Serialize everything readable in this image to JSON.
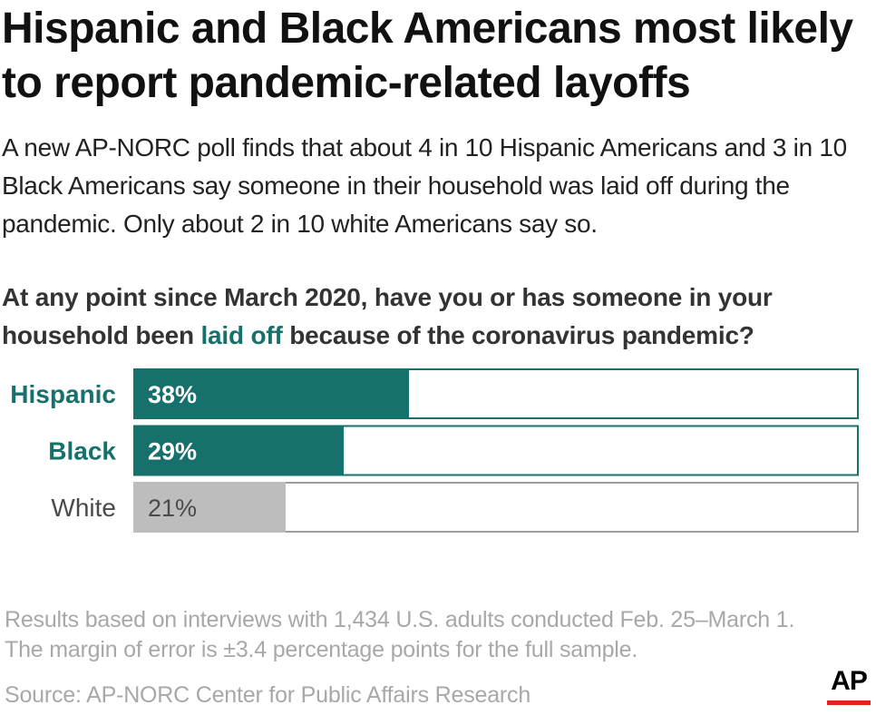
{
  "title": "Hispanic and Black Americans most likely to report pandemic-related layoffs",
  "subtitle": "A new AP-NORC poll finds that about 4 in 10 Hispanic Americans and 3 in 10 Black Americans say someone in their household was laid off during the pandemic. Only about 2 in 10 white Americans say so.",
  "question": {
    "before": "At any point since March 2020, have you or has someone in your household been ",
    "highlight": "laid off",
    "after": " because of the coronavirus pandemic?"
  },
  "chart_data": {
    "type": "bar",
    "orientation": "horizontal",
    "categories": [
      "Hispanic",
      "Black",
      "White"
    ],
    "values": [
      38,
      29,
      21
    ],
    "value_labels": [
      "38%",
      "29%",
      "21%"
    ],
    "xlim": [
      0,
      100
    ],
    "colors": [
      "#16706b",
      "#16706b",
      "#bdbdbd"
    ],
    "label_colors": [
      "#16706b",
      "#16706b",
      "#4a4a4a"
    ],
    "label_bold": [
      true,
      true,
      false
    ],
    "title": "",
    "xlabel": "",
    "ylabel": ""
  },
  "colors": {
    "accent": "#16706b",
    "muted_bar": "#bdbdbd",
    "border": "#16706b",
    "muted_border": "#9e9e9e"
  },
  "footnote": "Results based on interviews with 1,434 U.S. adults conducted Feb. 25–March 1. The margin of error is ±3.4 percentage points for the full sample.",
  "source": "Source: AP-NORC Center for Public Affairs Research",
  "logo": {
    "text": "AP",
    "icon": "ap-logo-icon"
  }
}
